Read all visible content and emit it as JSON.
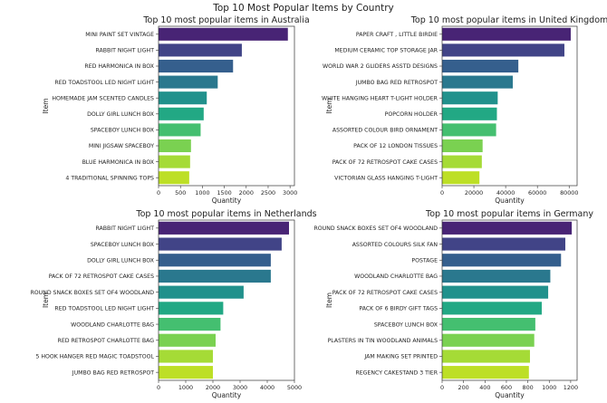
{
  "figure": {
    "suptitle": "Top 10 Most Popular Items by Country"
  },
  "chart_data": [
    {
      "type": "bar",
      "orientation": "horizontal",
      "title": "Top 10 most popular items in Australia",
      "xlabel": "Quantity",
      "ylabel": "Item",
      "categories": [
        "MINI PAINT SET VINTAGE",
        "RABBIT NIGHT LIGHT",
        "RED  HARMONICA IN BOX",
        "RED TOADSTOOL LED NIGHT LIGHT",
        "HOMEMADE JAM SCENTED CANDLES",
        "DOLLY GIRL LUNCH BOX",
        "SPACEBOY LUNCH BOX",
        "MINI JIGSAW SPACEBOY",
        "BLUE HARMONICA IN BOX",
        "4 TRADITIONAL SPINNING TOPS"
      ],
      "values": [
        2950,
        1900,
        1700,
        1350,
        1100,
        1030,
        960,
        740,
        720,
        700
      ],
      "xlim": [
        0,
        3100
      ],
      "xticks": [
        0,
        500,
        1000,
        1500,
        2000,
        2500,
        3000
      ]
    },
    {
      "type": "bar",
      "orientation": "horizontal",
      "title": "Top 10 most popular items in United Kingdom",
      "xlabel": "Quantity",
      "ylabel": "Item",
      "categories": [
        "PAPER CRAFT , LITTLE BIRDIE",
        "MEDIUM CERAMIC TOP STORAGE JAR",
        "WORLD WAR 2 GLIDERS ASSTD DESIGNS",
        "JUMBO BAG RED RETROSPOT",
        "WHITE HANGING HEART T-LIGHT HOLDER",
        "POPCORN HOLDER",
        "ASSORTED COLOUR BIRD ORNAMENT",
        "PACK OF 12 LONDON TISSUES",
        "PACK OF 72 RETROSPOT CAKE CASES",
        "VICTORIAN GLASS HANGING T-LIGHT"
      ],
      "values": [
        80995,
        77000,
        48000,
        44500,
        35000,
        34500,
        34000,
        25500,
        25000,
        23500
      ],
      "xlim": [
        0,
        85000
      ],
      "xticks": [
        0,
        20000,
        40000,
        60000,
        80000
      ]
    },
    {
      "type": "bar",
      "orientation": "horizontal",
      "title": "Top 10 most popular items in Netherlands",
      "xlabel": "Quantity",
      "ylabel": "Item",
      "categories": [
        "RABBIT NIGHT LIGHT",
        "SPACEBOY LUNCH BOX",
        "DOLLY GIRL LUNCH BOX",
        "PACK OF 72 RETROSPOT CAKE CASES",
        "ROUND SNACK BOXES SET OF4 WOODLAND",
        "RED TOADSTOOL LED NIGHT LIGHT",
        "WOODLAND CHARLOTTE BAG",
        "RED RETROSPOT CHARLOTTE BAG",
        "5 HOOK HANGER RED MAGIC TOADSTOOL",
        "JUMBO BAG RED RETROSPOT"
      ],
      "values": [
        4800,
        4530,
        4130,
        4130,
        3130,
        2380,
        2280,
        2100,
        2000,
        2000
      ],
      "xlim": [
        0,
        5000
      ],
      "xticks": [
        0,
        1000,
        2000,
        3000,
        4000,
        5000
      ]
    },
    {
      "type": "bar",
      "orientation": "horizontal",
      "title": "Top 10 most popular items in Germany",
      "xlabel": "Quantity",
      "ylabel": "Item",
      "categories": [
        "ROUND SNACK BOXES SET OF4 WOODLAND",
        "ASSORTED COLOURS SILK FAN",
        "POSTAGE",
        "WOODLAND CHARLOTTE BAG",
        "PACK OF 72 RETROSPOT CAKE CASES",
        "PACK OF 6 BIRDY GIFT TAGS",
        "SPACEBOY LUNCH BOX",
        "PLASTERS IN TIN WOODLAND ANIMALS",
        "JAM MAKING SET PRINTED",
        "REGENCY CAKESTAND 3 TIER"
      ],
      "values": [
        1210,
        1150,
        1110,
        1010,
        990,
        930,
        870,
        860,
        820,
        810
      ],
      "xlim": [
        0,
        1260
      ],
      "xticks": [
        0,
        200,
        400,
        600,
        800,
        1000,
        1200
      ]
    }
  ],
  "colors": {
    "palette": [
      "#482475",
      "#414487",
      "#355f8d",
      "#2a788e",
      "#21918c",
      "#22a884",
      "#44bf70",
      "#7ad151",
      "#a5db36",
      "#bddf26"
    ],
    "axis": "#333333",
    "text": "#222222"
  }
}
